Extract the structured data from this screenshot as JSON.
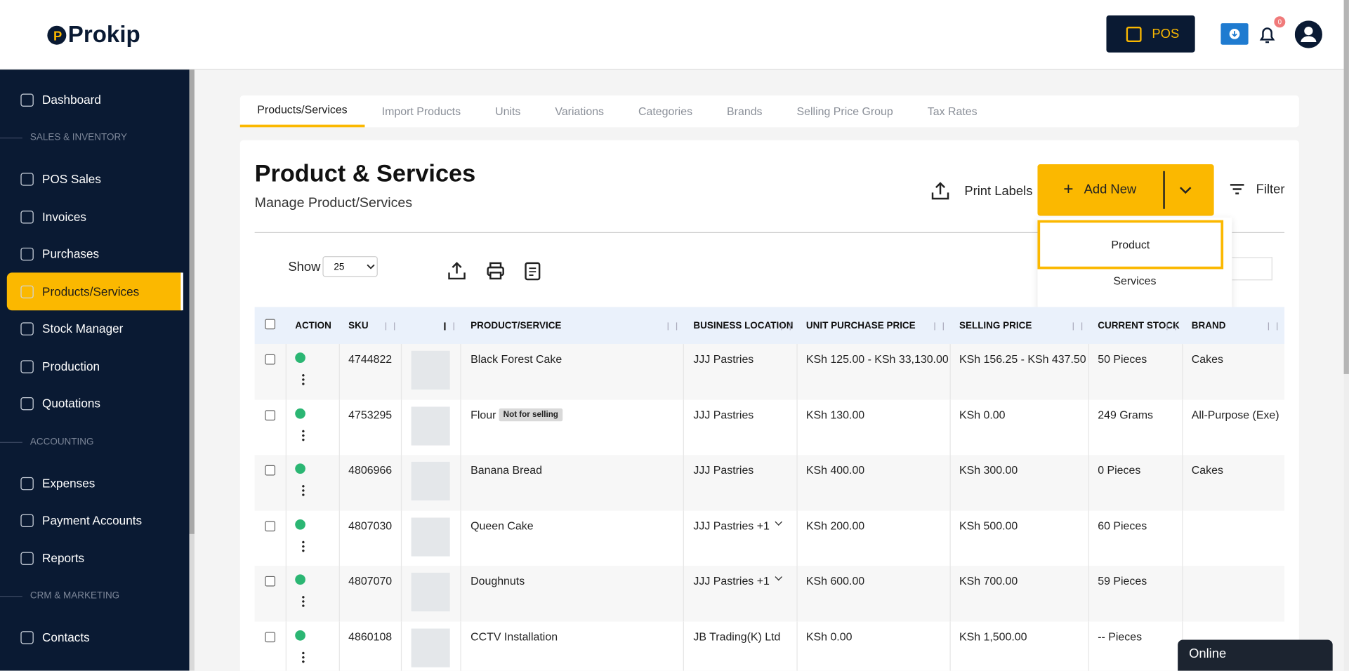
{
  "header": {
    "logo": "Prokip",
    "pos_button": "POS",
    "notification_count": "0"
  },
  "sidebar": [
    {
      "label": "Dashboard"
    },
    {
      "section": "SALES & INVENTORY"
    },
    {
      "label": "POS Sales"
    },
    {
      "label": "Invoices"
    },
    {
      "label": "Purchases"
    },
    {
      "label": "Products/Services",
      "active": true
    },
    {
      "label": "Stock Manager"
    },
    {
      "label": "Production"
    },
    {
      "label": "Quotations"
    },
    {
      "section": "ACCOUNTING"
    },
    {
      "label": "Expenses"
    },
    {
      "label": "Payment Accounts"
    },
    {
      "label": "Reports"
    },
    {
      "section": "CRM & MARKETING"
    },
    {
      "label": "Contacts"
    }
  ],
  "tabs": [
    "Products/Services",
    "Import Products",
    "Units",
    "Variations",
    "Categories",
    "Brands",
    "Selling Price Group",
    "Tax Rates"
  ],
  "page": {
    "title": "Product & Services",
    "subtitle": "Manage Product/Services",
    "print_labels": "Print Labels",
    "add_new": "Add New",
    "filter": "Filter",
    "dropdown": [
      "Product",
      "Services"
    ],
    "show_label": "Show",
    "page_size": "25"
  },
  "table": {
    "columns": [
      "ACTION",
      "SKU",
      "PRODUCT/SERVICE",
      "BUSINESS LOCATION",
      "UNIT PURCHASE PRICE",
      "SELLING PRICE",
      "CURRENT STOCK",
      "BRAND"
    ],
    "rows": [
      {
        "sku": "4744822",
        "product": "Black Forest Cake",
        "location": "JJJ Pastries",
        "purchase": "KSh 125.00 - KSh 33,130.00",
        "selling": "KSh 156.25 - KSh 437.50",
        "stock": "50 Pieces",
        "brand": "Cakes"
      },
      {
        "sku": "4753295",
        "product": "Flour",
        "badge": "Not for selling",
        "location": "JJJ Pastries",
        "purchase": "KSh 130.00",
        "selling": "KSh 0.00",
        "stock": "249 Grams",
        "brand": "All-Purpose (Exe)"
      },
      {
        "sku": "4806966",
        "product": "Banana Bread",
        "location": "JJJ Pastries",
        "purchase": "KSh 400.00",
        "selling": "KSh 300.00",
        "stock": "0 Pieces",
        "brand": "Cakes"
      },
      {
        "sku": "4807030",
        "product": "Queen Cake",
        "location": "JJJ Pastries +1",
        "purchase": "KSh 200.00",
        "selling": "KSh 500.00",
        "stock": "60 Pieces"
      },
      {
        "sku": "4807070",
        "product": "Doughnuts",
        "location": "JJJ Pastries +1",
        "purchase": "KSh 600.00",
        "selling": "KSh 700.00",
        "stock": "59 Pieces"
      },
      {
        "sku": "4860108",
        "product": "CCTV Installation",
        "location": "JB Trading(K) Ltd",
        "purchase": "KSh 0.00",
        "selling": "KSh 1,500.00",
        "stock": "-- Pieces"
      }
    ]
  },
  "status": "Online"
}
